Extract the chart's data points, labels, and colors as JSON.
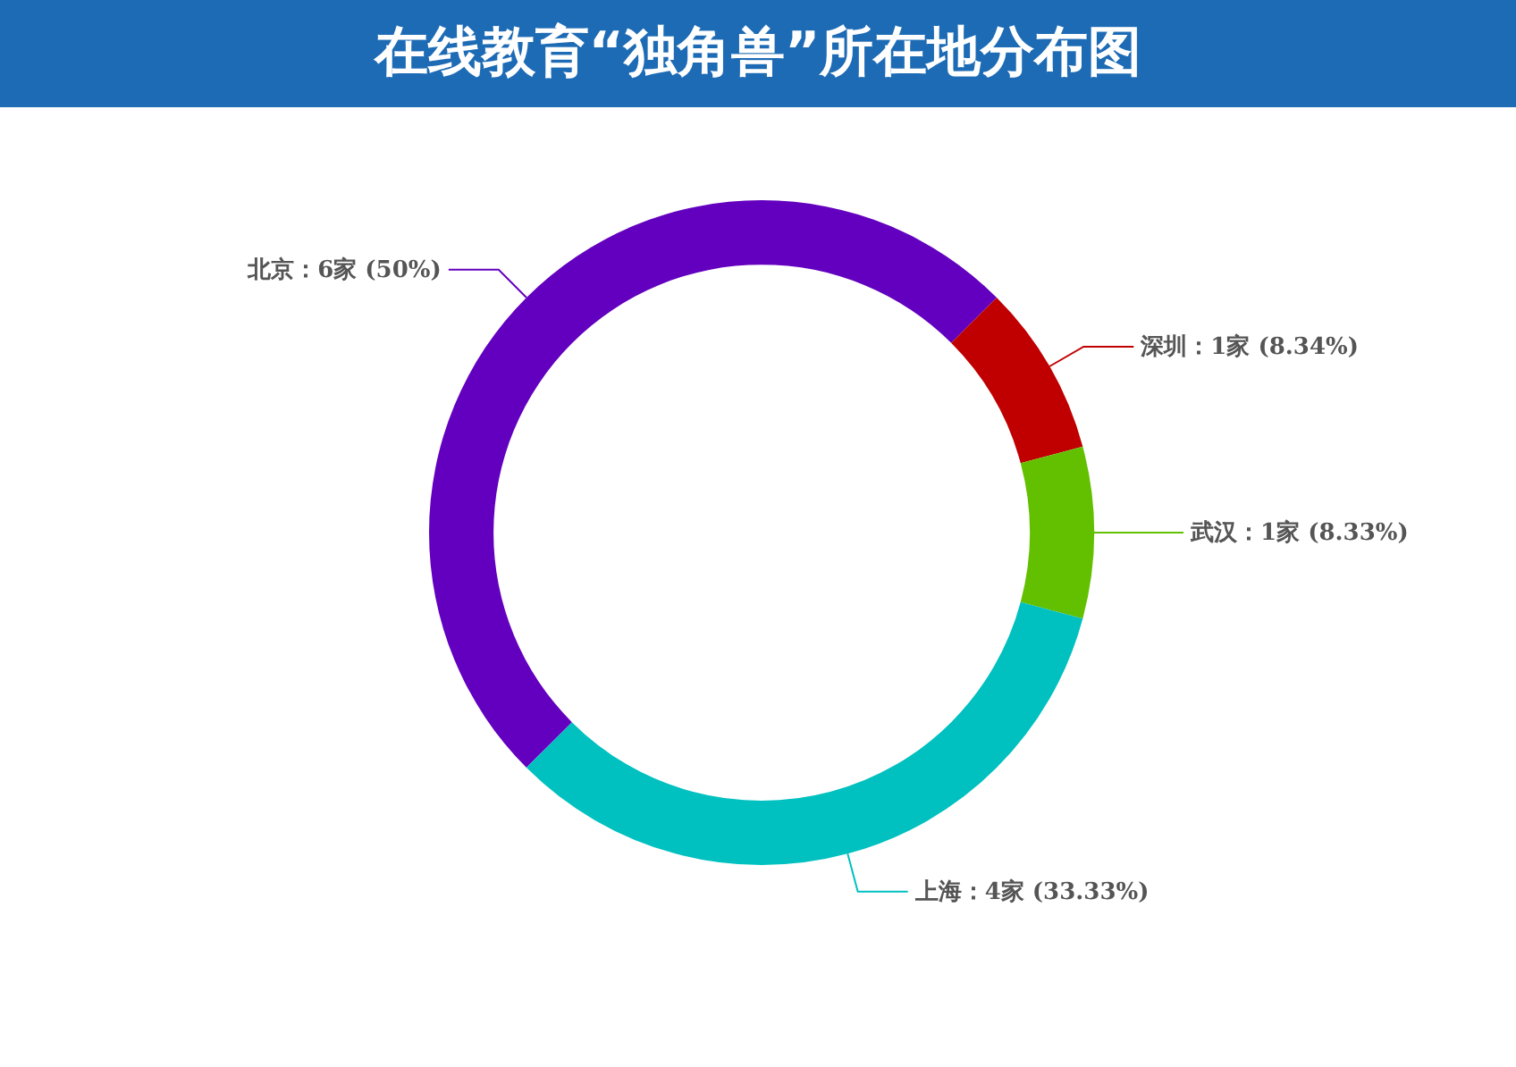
{
  "chart_data": {
    "type": "donut",
    "title": "在线教育“独角兽”所在地分布图",
    "categories": [
      "北京",
      "深圳",
      "武汉",
      "上海"
    ],
    "values": [
      6,
      1,
      1,
      4
    ],
    "value_labels": [
      "：6家 (50%)",
      "：1家 (8.34%)",
      "：1家 (8.33%)",
      "：4家 (33.33%)"
    ],
    "colors": [
      "#6300bf",
      "#c00000",
      "#63c000",
      "#00c0c0"
    ]
  }
}
